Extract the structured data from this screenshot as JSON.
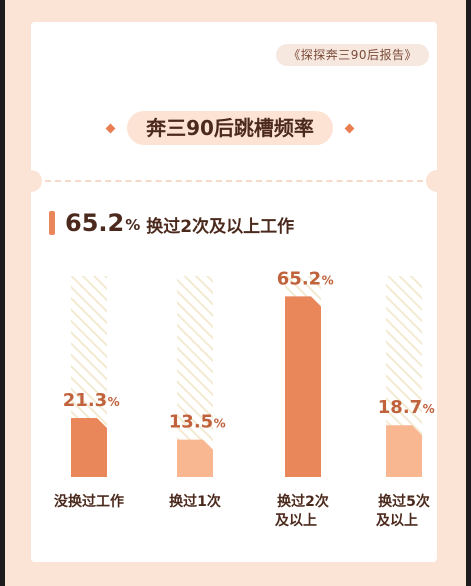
{
  "source_tag": "《探探奔三90后报告》",
  "title": "奔三90后跳槽频率",
  "headline": {
    "value": "65.2",
    "unit": "%",
    "text": "换过2次及以上工作"
  },
  "colors": {
    "highlight": "#e9875b",
    "normal": "#f8b691",
    "label": "#c0623c",
    "hatch": "#f3ead2"
  },
  "chart_data": {
    "type": "bar",
    "categories": [
      [
        "没换过工作"
      ],
      [
        "换过1次"
      ],
      [
        "换过2次",
        "及以上"
      ],
      [
        "换过5次",
        "及以上"
      ]
    ],
    "values": [
      21.3,
      13.5,
      65.2,
      18.7
    ],
    "value_labels": [
      "21.3",
      "13.5",
      "65.2",
      "18.7"
    ],
    "unit": "%",
    "ylim": [
      0,
      100
    ],
    "highlight": [
      true,
      false,
      true,
      false
    ]
  }
}
